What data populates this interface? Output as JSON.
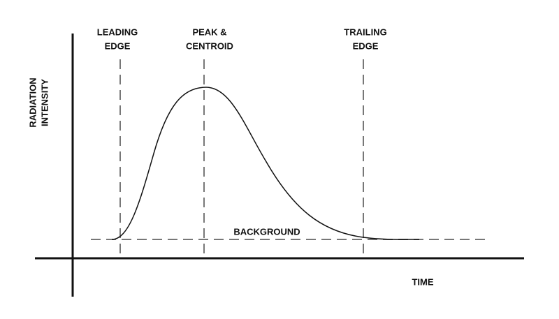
{
  "y_axis_label": [
    "RADIATION",
    "INTENSITY"
  ],
  "x_axis_label": "TIME",
  "markers": [
    {
      "label": [
        "LEADING",
        "EDGE"
      ]
    },
    {
      "label": [
        "PEAK &",
        "CENTROID"
      ]
    },
    {
      "label": [
        "TRAILING",
        "EDGE"
      ]
    }
  ],
  "background_label": "BACKGROUND"
}
